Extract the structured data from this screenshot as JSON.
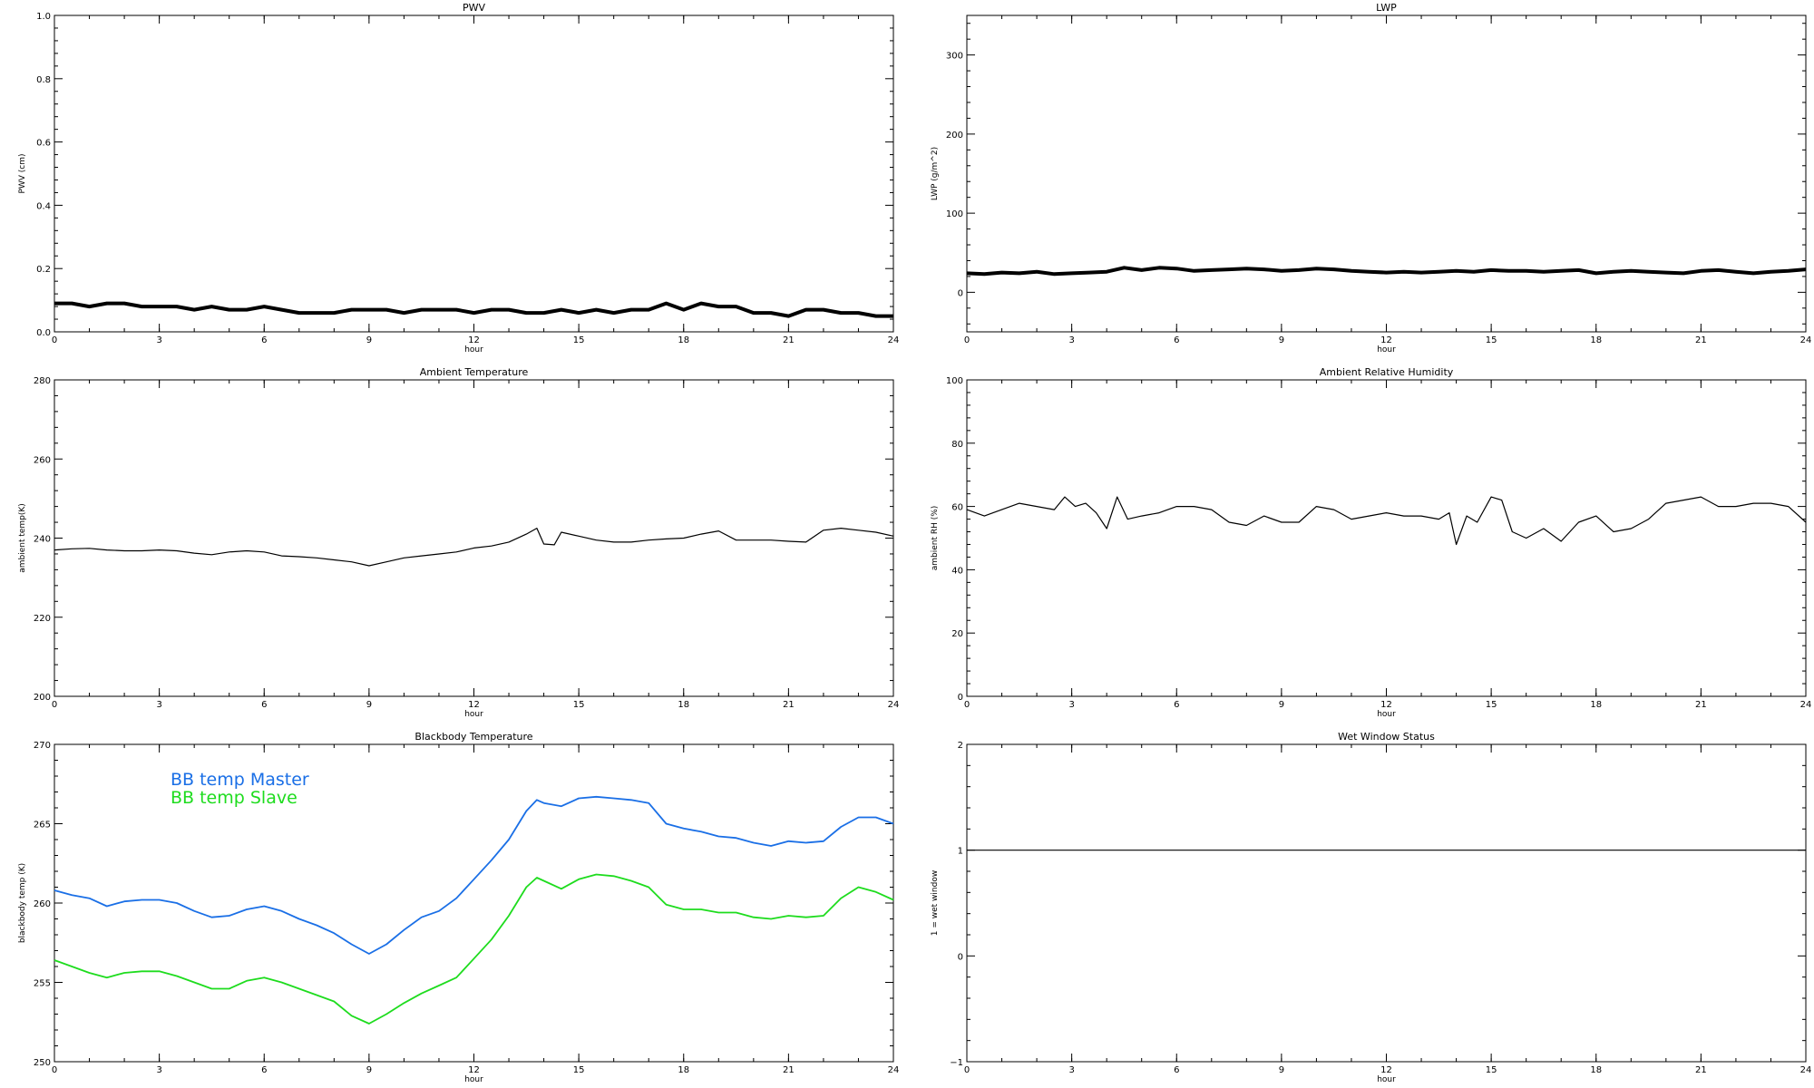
{
  "chart_data": [
    {
      "type": "line",
      "title": "PWV",
      "xlabel": "hour",
      "ylabel": "PWV (cm)",
      "xlim": [
        0,
        24
      ],
      "ylim": [
        0,
        1
      ],
      "xticks": [
        0,
        3,
        6,
        9,
        12,
        15,
        18,
        21,
        24
      ],
      "xtick_labels": [
        "0",
        "3",
        "6",
        "9",
        "12",
        "15",
        "18",
        "21",
        "24"
      ],
      "yticks": [
        0,
        0.2,
        0.4,
        0.6,
        0.8,
        1.0
      ],
      "ytick_labels": [
        "0.0",
        "0.2",
        "0.4",
        "0.6",
        "0.8",
        "1.0"
      ],
      "series": [
        {
          "color": "#000000",
          "x": [
            0,
            0.5,
            1,
            1.5,
            2,
            2.5,
            3,
            3.5,
            4,
            4.5,
            5,
            5.5,
            6,
            6.5,
            7,
            7.5,
            8,
            8.5,
            9,
            9.5,
            10,
            10.5,
            11,
            11.5,
            12,
            12.5,
            13,
            13.5,
            14,
            14.5,
            15,
            15.5,
            16,
            16.5,
            17,
            17.5,
            18,
            18.5,
            19,
            19.5,
            20,
            20.5,
            21,
            21.5,
            22,
            22.5,
            23,
            23.5,
            24
          ],
          "y": [
            0.09,
            0.09,
            0.08,
            0.09,
            0.09,
            0.08,
            0.08,
            0.08,
            0.07,
            0.08,
            0.07,
            0.07,
            0.08,
            0.07,
            0.06,
            0.06,
            0.06,
            0.07,
            0.07,
            0.07,
            0.06,
            0.07,
            0.07,
            0.07,
            0.06,
            0.07,
            0.07,
            0.06,
            0.06,
            0.07,
            0.06,
            0.07,
            0.06,
            0.07,
            0.07,
            0.09,
            0.07,
            0.09,
            0.08,
            0.08,
            0.06,
            0.06,
            0.05,
            0.07,
            0.07,
            0.06,
            0.06,
            0.05,
            0.05
          ]
        }
      ]
    },
    {
      "type": "line",
      "title": "LWP",
      "xlabel": "hour",
      "ylabel": "LWP (g/m^2)",
      "xlim": [
        0,
        24
      ],
      "ylim": [
        -50,
        350
      ],
      "xticks": [
        0,
        3,
        6,
        9,
        12,
        15,
        18,
        21,
        24
      ],
      "xtick_labels": [
        "0",
        "3",
        "6",
        "9",
        "12",
        "15",
        "18",
        "21",
        "24"
      ],
      "yticks": [
        0,
        100,
        200,
        300
      ],
      "ytick_labels": [
        "0",
        "100",
        "200",
        "300"
      ],
      "series": [
        {
          "color": "#000000",
          "x": [
            0,
            0.5,
            1,
            1.5,
            2,
            2.5,
            3,
            3.5,
            4,
            4.5,
            5,
            5.5,
            6,
            6.5,
            7,
            7.5,
            8,
            8.5,
            9,
            9.5,
            10,
            10.5,
            11,
            11.5,
            12,
            12.5,
            13,
            13.5,
            14,
            14.5,
            15,
            15.5,
            16,
            16.5,
            17,
            17.5,
            18,
            18.5,
            19,
            19.5,
            20,
            20.5,
            21,
            21.5,
            22,
            22.5,
            23,
            23.5,
            24
          ],
          "y": [
            24,
            23,
            25,
            24,
            26,
            23,
            24,
            25,
            26,
            31,
            28,
            31,
            30,
            27,
            28,
            29,
            30,
            29,
            27,
            28,
            30,
            29,
            27,
            26,
            25,
            26,
            25,
            26,
            27,
            26,
            28,
            27,
            27,
            26,
            27,
            28,
            24,
            26,
            27,
            26,
            25,
            24,
            27,
            28,
            26,
            24,
            26,
            27,
            29
          ]
        }
      ]
    },
    {
      "type": "line",
      "title": "Ambient Temperature",
      "xlabel": "hour",
      "ylabel": "ambient temp(K)",
      "xlim": [
        0,
        24
      ],
      "ylim": [
        200,
        280
      ],
      "xticks": [
        0,
        3,
        6,
        9,
        12,
        15,
        18,
        21,
        24
      ],
      "xtick_labels": [
        "0",
        "3",
        "6",
        "9",
        "12",
        "15",
        "18",
        "21",
        "24"
      ],
      "yticks": [
        200,
        220,
        240,
        260,
        280
      ],
      "ytick_labels": [
        "200",
        "220",
        "240",
        "260",
        "280"
      ],
      "series": [
        {
          "color": "#000000",
          "x": [
            0,
            0.5,
            1,
            1.5,
            2,
            2.5,
            3,
            3.5,
            4,
            4.5,
            5,
            5.5,
            6,
            6.5,
            7,
            7.5,
            8,
            8.5,
            9,
            9.5,
            10,
            10.5,
            11,
            11.5,
            12,
            12.5,
            13,
            13.5,
            13.8,
            14,
            14.3,
            14.5,
            15,
            15.5,
            16,
            16.5,
            17,
            17.5,
            18,
            18.5,
            19,
            19.5,
            20,
            20.5,
            21,
            21.5,
            22,
            22.5,
            23,
            23.5,
            24
          ],
          "y": [
            237,
            237.3,
            237.4,
            237,
            236.8,
            236.8,
            237,
            236.8,
            236.2,
            235.8,
            236.5,
            236.8,
            236.5,
            235.5,
            235.3,
            235,
            234.5,
            234,
            233,
            234,
            235,
            235.5,
            236,
            236.5,
            237.5,
            238,
            239,
            241,
            242.5,
            238.5,
            238.3,
            241.5,
            240.5,
            239.5,
            239,
            239,
            239.5,
            239.8,
            240,
            241,
            241.8,
            239.5,
            239.5,
            239.5,
            239.2,
            239,
            242,
            242.5,
            242,
            241.5,
            240.5
          ]
        }
      ]
    },
    {
      "type": "line",
      "title": "Ambient Relative Humidity",
      "xlabel": "hour",
      "ylabel": "ambient RH (%)",
      "xlim": [
        0,
        24
      ],
      "ylim": [
        0,
        100
      ],
      "xticks": [
        0,
        3,
        6,
        9,
        12,
        15,
        18,
        21,
        24
      ],
      "xtick_labels": [
        "0",
        "3",
        "6",
        "9",
        "12",
        "15",
        "18",
        "21",
        "24"
      ],
      "yticks": [
        0,
        20,
        40,
        60,
        80,
        100
      ],
      "ytick_labels": [
        "0",
        "20",
        "40",
        "60",
        "80",
        "100"
      ],
      "series": [
        {
          "color": "#000000",
          "x": [
            0,
            0.5,
            1,
            1.5,
            2,
            2.5,
            2.8,
            3.1,
            3.4,
            3.7,
            4,
            4.3,
            4.6,
            5,
            5.5,
            6,
            6.5,
            7,
            7.5,
            8,
            8.5,
            9,
            9.5,
            10,
            10.5,
            11,
            11.5,
            12,
            12.5,
            13,
            13.5,
            13.8,
            14,
            14.3,
            14.6,
            15,
            15.3,
            15.6,
            16,
            16.5,
            17,
            17.5,
            18,
            18.5,
            19,
            19.5,
            20,
            20.5,
            21,
            21.5,
            22,
            22.5,
            23,
            23.5,
            24
          ],
          "y": [
            59,
            57,
            59,
            61,
            60,
            59,
            63,
            60,
            61,
            58,
            53,
            63,
            56,
            57,
            58,
            60,
            60,
            59,
            55,
            54,
            57,
            55,
            55,
            60,
            59,
            56,
            57,
            58,
            57,
            57,
            56,
            58,
            48,
            57,
            55,
            63,
            62,
            52,
            50,
            53,
            49,
            55,
            57,
            52,
            53,
            56,
            61,
            62,
            63,
            60,
            60,
            61,
            61,
            60,
            55
          ]
        }
      ]
    },
    {
      "type": "line",
      "title": "Blackbody Temperature",
      "xlabel": "hour",
      "ylabel": "blackbody temp (K)",
      "xlim": [
        0,
        24
      ],
      "ylim": [
        250,
        270
      ],
      "xticks": [
        0,
        3,
        6,
        9,
        12,
        15,
        18,
        21,
        24
      ],
      "xtick_labels": [
        "0",
        "3",
        "6",
        "9",
        "12",
        "15",
        "18",
        "21",
        "24"
      ],
      "yticks": [
        250,
        255,
        260,
        265,
        270
      ],
      "ytick_labels": [
        "250",
        "255",
        "260",
        "265",
        "270"
      ],
      "legend": [
        "BB temp Master",
        "BB temp Slave"
      ],
      "legend_position": "top-left",
      "series": [
        {
          "name": "BB temp Master",
          "color": "#1a6fe6",
          "x": [
            0,
            0.5,
            1,
            1.5,
            2,
            2.5,
            3,
            3.5,
            4,
            4.5,
            5,
            5.5,
            6,
            6.5,
            7,
            7.5,
            8,
            8.5,
            9,
            9.5,
            10,
            10.5,
            11,
            11.5,
            12,
            12.5,
            13,
            13.5,
            13.8,
            14,
            14.5,
            15,
            15.5,
            16,
            16.5,
            17,
            17.5,
            18,
            18.5,
            19,
            19.5,
            20,
            20.5,
            21,
            21.5,
            22,
            22.5,
            23,
            23.5,
            24
          ],
          "y": [
            260.8,
            260.5,
            260.3,
            259.8,
            260.1,
            260.2,
            260.2,
            260,
            259.5,
            259.1,
            259.2,
            259.6,
            259.8,
            259.5,
            259.0,
            258.6,
            258.1,
            257.4,
            256.8,
            257.4,
            258.3,
            259.1,
            259.5,
            260.3,
            261.5,
            262.7,
            264.0,
            265.8,
            266.5,
            266.3,
            266.1,
            266.6,
            266.7,
            266.6,
            266.5,
            266.3,
            265.0,
            264.7,
            264.5,
            264.2,
            264.1,
            263.8,
            263.6,
            263.9,
            263.8,
            263.9,
            264.8,
            265.4,
            265.4,
            265.0
          ]
        },
        {
          "name": "BB temp Slave",
          "color": "#1edc1e",
          "x": [
            0,
            0.5,
            1,
            1.5,
            2,
            2.5,
            3,
            3.5,
            4,
            4.5,
            5,
            5.5,
            6,
            6.5,
            7,
            7.5,
            8,
            8.5,
            9,
            9.5,
            10,
            10.5,
            11,
            11.5,
            12,
            12.5,
            13,
            13.5,
            13.8,
            14,
            14.5,
            15,
            15.5,
            16,
            16.5,
            17,
            17.5,
            18,
            18.5,
            19,
            19.5,
            20,
            20.5,
            21,
            21.5,
            22,
            22.5,
            23,
            23.5,
            24
          ],
          "y": [
            256.4,
            256.0,
            255.6,
            255.3,
            255.6,
            255.7,
            255.7,
            255.4,
            255.0,
            254.6,
            254.6,
            255.1,
            255.3,
            255.0,
            254.6,
            254.2,
            253.8,
            252.9,
            252.4,
            253.0,
            253.7,
            254.3,
            254.8,
            255.3,
            256.5,
            257.7,
            259.2,
            261.0,
            261.6,
            261.4,
            260.9,
            261.5,
            261.8,
            261.7,
            261.4,
            261.0,
            259.9,
            259.6,
            259.6,
            259.4,
            259.4,
            259.1,
            259.0,
            259.2,
            259.1,
            259.2,
            260.3,
            261.0,
            260.7,
            260.2
          ]
        }
      ]
    },
    {
      "type": "line",
      "title": "Wet Window Status",
      "xlabel": "hour",
      "ylabel": "1 = wet window",
      "xlim": [
        0,
        24
      ],
      "ylim": [
        -1,
        2
      ],
      "xticks": [
        0,
        3,
        6,
        9,
        12,
        15,
        18,
        21,
        24
      ],
      "xtick_labels": [
        "0",
        "3",
        "6",
        "9",
        "12",
        "15",
        "18",
        "21",
        "24"
      ],
      "yticks": [
        -1,
        0,
        1,
        2
      ],
      "ytick_labels": [
        "−1",
        "0",
        "1",
        "2"
      ],
      "series": [
        {
          "color": "#000000",
          "x": [
            0,
            24
          ],
          "y": [
            1,
            1
          ]
        }
      ]
    }
  ]
}
